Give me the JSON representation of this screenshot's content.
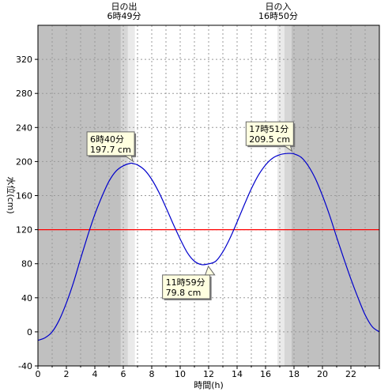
{
  "chart_data": {
    "type": "line",
    "xlabel": "時間(h)",
    "ylabel": "水位(cm)",
    "xlim": [
      0,
      24
    ],
    "ylim": [
      -40,
      360
    ],
    "x_ticks": [
      0,
      2,
      4,
      6,
      8,
      10,
      12,
      14,
      16,
      18,
      20,
      22
    ],
    "y_ticks": [
      -40,
      0,
      40,
      80,
      120,
      160,
      200,
      240,
      280,
      320
    ],
    "grid": true,
    "reference_line": {
      "y": 120,
      "color": "#ff0000"
    },
    "sunrise": {
      "label": "日の出",
      "time": "6時49分",
      "hour": 6.817
    },
    "sunset": {
      "label": "日の入",
      "time": "16時50分",
      "hour": 16.833
    },
    "series": [
      {
        "color": "#0000cc",
        "x": [
          0,
          0.5,
          1,
          1.5,
          2,
          2.5,
          3,
          3.5,
          4,
          4.5,
          5,
          5.5,
          6,
          6.5,
          6.67,
          7,
          7.5,
          8,
          8.5,
          9,
          9.5,
          10,
          10.5,
          11,
          11.5,
          11.98,
          12.5,
          13,
          13.5,
          14,
          14.5,
          15,
          15.5,
          16,
          16.5,
          17,
          17.5,
          17.85,
          18,
          18.5,
          19,
          19.5,
          20,
          20.5,
          21,
          21.5,
          22,
          22.5,
          23,
          23.5,
          24
        ],
        "y": [
          -10,
          -7,
          0,
          14,
          34,
          58,
          86,
          113,
          138,
          159,
          177,
          189,
          195,
          198,
          197.7,
          196,
          190,
          179,
          164,
          146,
          127,
          109,
          93,
          83,
          79,
          79.8,
          83,
          94,
          110,
          129,
          149,
          168,
          184,
          196,
          204,
          208,
          209.5,
          209.5,
          209,
          205,
          195,
          180,
          160,
          137,
          111,
          86,
          62,
          40,
          20,
          6,
          0
        ]
      }
    ],
    "annotations": [
      {
        "time": "6時40分",
        "value": "197.7 cm",
        "x": 6.67,
        "y": 197.7,
        "position": "above"
      },
      {
        "time": "11時59分",
        "value": "79.8 cm",
        "x": 11.98,
        "y": 79.8,
        "position": "below"
      },
      {
        "time": "17時51分",
        "value": "209.5 cm",
        "x": 17.85,
        "y": 209.5,
        "position": "above"
      }
    ]
  }
}
